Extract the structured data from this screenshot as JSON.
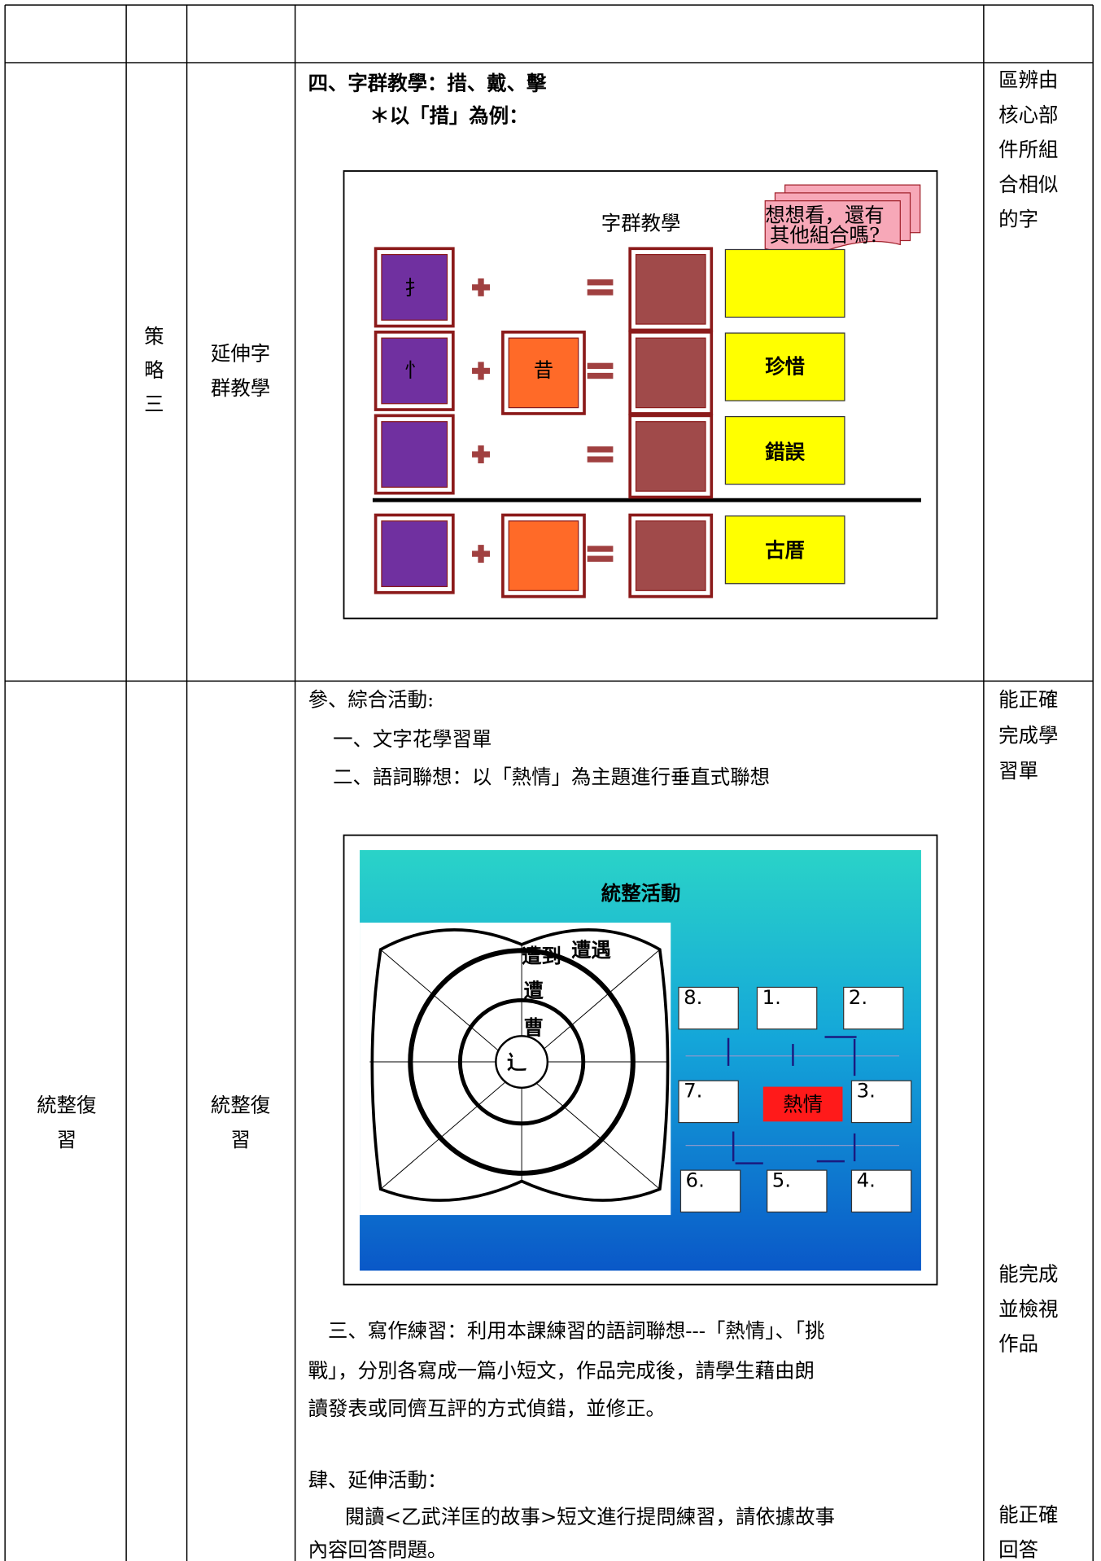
{
  "row2": {
    "strategy": [
      "策",
      "略",
      "三"
    ],
    "activity": [
      "延伸字",
      "群教學"
    ],
    "content": [
      "四、字群教學：措、戴、擊",
      "＊以「措」為例："
    ],
    "evaluation": [
      "區辨由",
      "核心部",
      "件所組",
      "合相似",
      "的字"
    ]
  },
  "slide1": {
    "title": "字群教學",
    "note": [
      "想想看，還有",
      "其他組合嗎?"
    ],
    "radicals": [
      "扌",
      "忄"
    ],
    "component": "昔",
    "words": [
      "珍惜",
      "錯誤",
      "古厝"
    ]
  },
  "row3": {
    "stage": [
      "統整復",
      "習"
    ],
    "activity": [
      "統整復",
      "習"
    ],
    "content": [
      "參、綜合活動:",
      "一、文字花學習單",
      "二、語詞聯想：以「熱情」為主題進行垂直式聯想"
    ],
    "writing": [
      "三、寫作練習：利用本課練習的語詞聯想---「熱情」、「挑",
      "戰」，分別各寫成一篇小短文，作品完成後，請學生藉由朗",
      "讀發表或同儕互評的方式偵錯，並修正。"
    ],
    "extension": [
      "肆、延伸活動：",
      "閱讀<乙武洋匡的故事>短文進行提問練習，請依據故事",
      "內容回答問題。"
    ],
    "evaluation": [
      "能正確",
      "完成學",
      "習單"
    ],
    "evaluation2": [
      "能完成",
      "並檢視",
      "作品"
    ],
    "evaluation3": [
      "能正確",
      "回答"
    ]
  },
  "slide2": {
    "title": "統整活動",
    "flower": [
      "遭到",
      "遭遇",
      "遭",
      "曹",
      "辶"
    ],
    "boxes": [
      "8.",
      "1.",
      "2.",
      "7.",
      "3.",
      "6.",
      "5.",
      "4."
    ],
    "center": "熱情"
  }
}
